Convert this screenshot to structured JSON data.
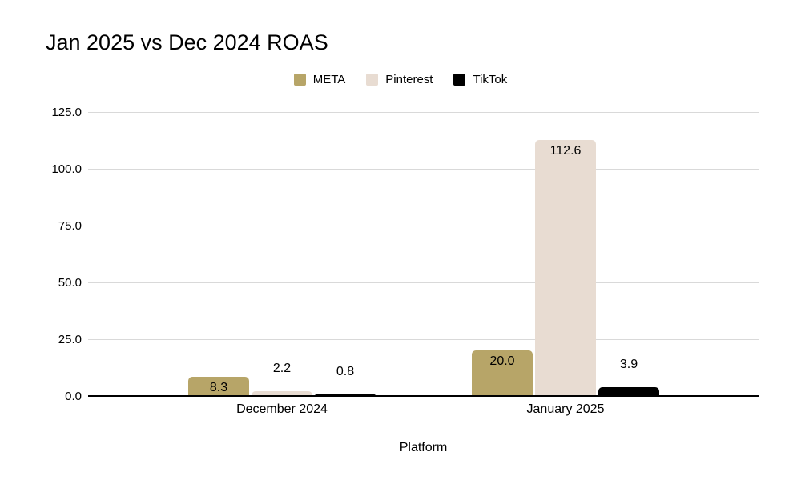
{
  "chart_data": {
    "type": "bar",
    "title": "Jan 2025 vs Dec 2024 ROAS",
    "xlabel": "Platform",
    "ylabel": "",
    "categories": [
      "December 2024",
      "January 2025"
    ],
    "series": [
      {
        "name": "META",
        "color": "#b7a568",
        "values": [
          8.3,
          20.0
        ],
        "value_labels": [
          "8.3",
          "20.0"
        ]
      },
      {
        "name": "Pinterest",
        "color": "#e8dcd2",
        "values": [
          2.2,
          112.6
        ],
        "value_labels": [
          "2.2",
          "112.6"
        ]
      },
      {
        "name": "TikTok",
        "color": "#000000",
        "values": [
          0.8,
          3.9
        ],
        "value_labels": [
          "0.8",
          "3.9"
        ]
      }
    ],
    "ylim": [
      0,
      125
    ],
    "ytick_labels": [
      "0.0",
      "25.0",
      "50.0",
      "75.0",
      "100.0",
      "125.0"
    ],
    "grid": true,
    "legend_position": "top",
    "colors": {
      "gridline": "#d9d9d9",
      "axis_line": "#000000",
      "text": "#000000",
      "background": "#ffffff"
    }
  }
}
